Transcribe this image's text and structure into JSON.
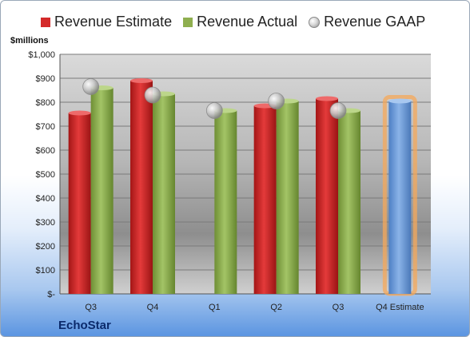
{
  "legend": {
    "estimate_label": "Revenue Estimate",
    "actual_label": "Revenue Actual",
    "gaap_label": "Revenue GAAP"
  },
  "units_label": "$millions",
  "company": "EchoStar",
  "colors": {
    "estimate": "#d42a2a",
    "actual": "#8faf4f",
    "gaap": "#bdbdbd",
    "forecast": "#6d9bd8",
    "forecast_glow": "#f5a85a"
  },
  "chart_data": {
    "type": "bar",
    "categories": [
      "Q3",
      "Q4",
      "Q1",
      "Q2",
      "Q3",
      "Q4 Estimate"
    ],
    "series": [
      {
        "name": "Revenue Estimate",
        "values": [
          755,
          890,
          null,
          785,
          815,
          null
        ]
      },
      {
        "name": "Revenue Actual",
        "values": [
          860,
          835,
          765,
          805,
          765,
          805
        ]
      },
      {
        "name": "Revenue GAAP",
        "values": [
          865,
          830,
          765,
          805,
          765,
          null
        ]
      }
    ],
    "ylim": [
      0,
      1000
    ],
    "yticks": [
      "$-",
      "$100",
      "$200",
      "$300",
      "$400",
      "$500",
      "$600",
      "$700",
      "$800",
      "$900",
      "$1,000"
    ],
    "ylabel": "$millions",
    "grid": true,
    "legend_position": "top"
  }
}
